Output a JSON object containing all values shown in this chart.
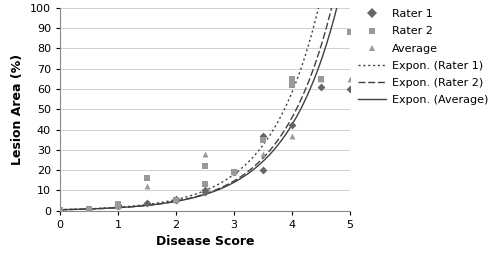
{
  "title": "",
  "xlabel": "Disease Score",
  "ylabel": "Lesion Area (%)",
  "xlim": [
    0,
    5
  ],
  "ylim": [
    0,
    100
  ],
  "xticks": [
    0,
    1,
    2,
    3,
    4,
    5
  ],
  "yticks": [
    0,
    10,
    20,
    30,
    40,
    50,
    60,
    70,
    80,
    90,
    100
  ],
  "rater1_x": [
    0,
    0.5,
    1.0,
    1.0,
    1.5,
    2.0,
    2.0,
    2.5,
    2.5,
    3.0,
    3.5,
    3.5,
    4.0,
    4.5,
    5.0
  ],
  "rater1_y": [
    0.5,
    1.0,
    2.5,
    3.0,
    4.0,
    5.5,
    6.0,
    9.0,
    10.0,
    19.0,
    20.0,
    37.0,
    42.0,
    61.0,
    60.0
  ],
  "rater2_x": [
    0,
    0.5,
    1.0,
    1.0,
    1.5,
    2.0,
    2.5,
    2.5,
    3.0,
    3.5,
    4.0,
    4.0,
    4.5,
    5.0
  ],
  "rater2_y": [
    0.5,
    1.0,
    2.5,
    3.5,
    16.0,
    5.5,
    13.0,
    22.0,
    19.0,
    35.0,
    62.0,
    65.0,
    65.0,
    88.0
  ],
  "average_x": [
    0,
    0.5,
    1.0,
    1.0,
    1.5,
    2.0,
    2.5,
    2.5,
    3.0,
    3.5,
    4.0,
    4.0,
    4.5,
    5.0
  ],
  "average_y": [
    0.5,
    1.0,
    2.5,
    3.5,
    12.0,
    5.5,
    13.5,
    28.0,
    19.0,
    28.0,
    37.0,
    63.5,
    65.0,
    65.0
  ],
  "exp_rater1_a": 0.6,
  "exp_rater1_b": 1.05,
  "exp_rater2_a": 0.55,
  "exp_rater2_b": 1.1,
  "exp_average_a": 0.52,
  "exp_average_b": 1.08,
  "marker_color_dark": "#666666",
  "marker_color_light": "#999999",
  "line_color": "#404040",
  "background_color": "#ffffff",
  "grid_color": "#d0d0d0",
  "fontsize": 8,
  "xlabel_fontsize": 9,
  "ylabel_fontsize": 9
}
